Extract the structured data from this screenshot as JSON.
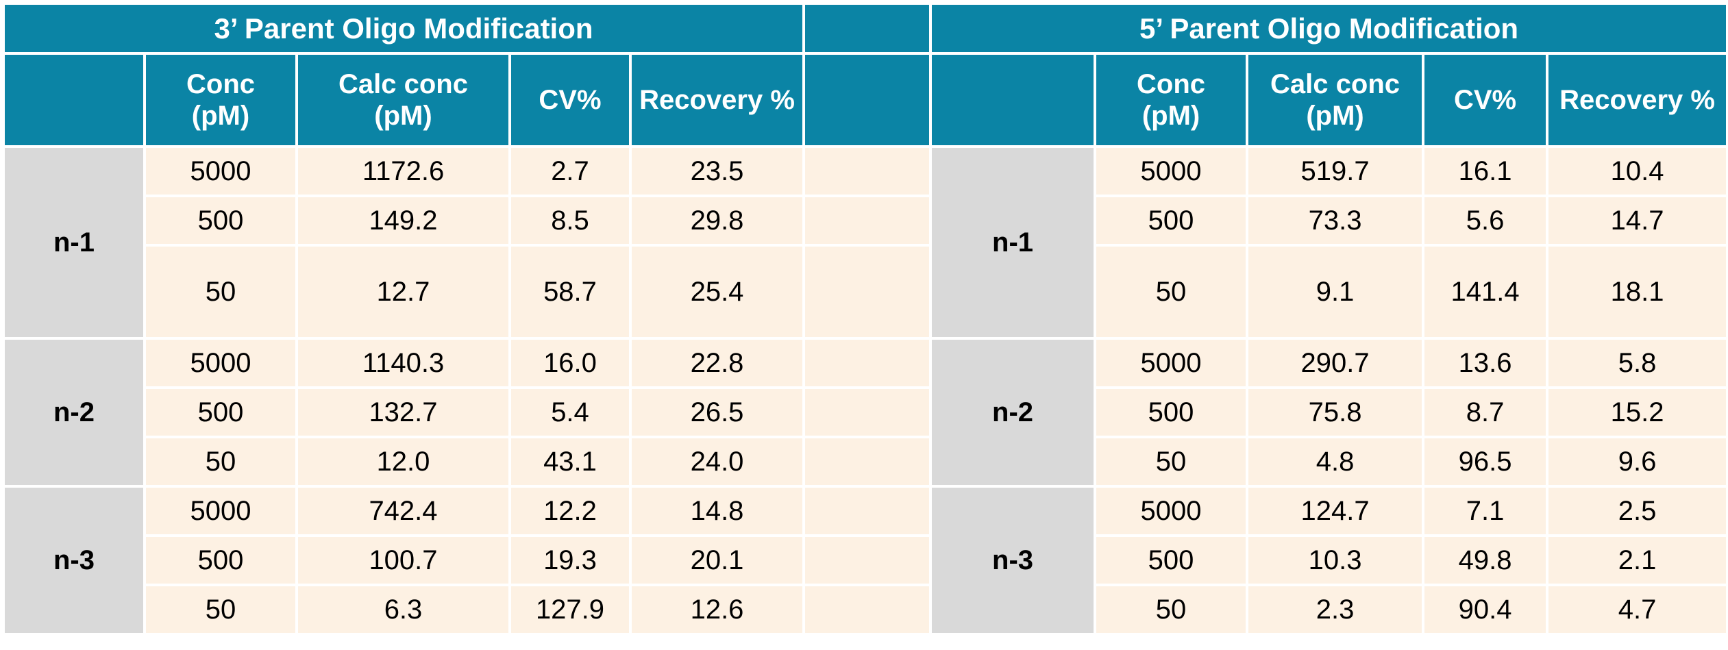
{
  "colors": {
    "header_bg": "#0b84a5",
    "label_bg": "#d9d9d9",
    "cell_bg": "#fdf1e3"
  },
  "left": {
    "title": "3’ Parent Oligo Modification",
    "headers": {
      "conc": "Conc\n(pM)",
      "calc": "Calc conc\n(pM)",
      "cv": "CV%",
      "recovery": "Recovery %"
    },
    "groups": [
      {
        "label": "n-1",
        "rows": [
          {
            "conc": "5000",
            "calc": "1172.6",
            "cv": "2.7",
            "rec": "23.5"
          },
          {
            "conc": "500",
            "calc": "149.2",
            "cv": "8.5",
            "rec": "29.8"
          },
          {
            "conc": "50",
            "calc": "12.7",
            "cv": "58.7",
            "rec": "25.4"
          }
        ]
      },
      {
        "label": "n-2",
        "rows": [
          {
            "conc": "5000",
            "calc": "1140.3",
            "cv": "16.0",
            "rec": "22.8"
          },
          {
            "conc": "500",
            "calc": "132.7",
            "cv": "5.4",
            "rec": "26.5"
          },
          {
            "conc": "50",
            "calc": "12.0",
            "cv": "43.1",
            "rec": "24.0"
          }
        ]
      },
      {
        "label": "n-3",
        "rows": [
          {
            "conc": "5000",
            "calc": "742.4",
            "cv": "12.2",
            "rec": "14.8"
          },
          {
            "conc": "500",
            "calc": "100.7",
            "cv": "19.3",
            "rec": "20.1"
          },
          {
            "conc": "50",
            "calc": "6.3",
            "cv": "127.9",
            "rec": "12.6"
          }
        ]
      }
    ]
  },
  "right": {
    "title": "5’ Parent Oligo Modification",
    "headers": {
      "conc": "Conc\n(pM)",
      "calc": "Calc conc\n(pM)",
      "cv": "CV%",
      "recovery": "Recovery %"
    },
    "groups": [
      {
        "label": "n-1",
        "rows": [
          {
            "conc": "5000",
            "calc": "519.7",
            "cv": "16.1",
            "rec": "10.4"
          },
          {
            "conc": "500",
            "calc": "73.3",
            "cv": "5.6",
            "rec": "14.7"
          },
          {
            "conc": "50",
            "calc": "9.1",
            "cv": "141.4",
            "rec": "18.1"
          }
        ]
      },
      {
        "label": "n-2",
        "rows": [
          {
            "conc": "5000",
            "calc": "290.7",
            "cv": "13.6",
            "rec": "5.8"
          },
          {
            "conc": "500",
            "calc": "75.8",
            "cv": "8.7",
            "rec": "15.2"
          },
          {
            "conc": "50",
            "calc": "4.8",
            "cv": "96.5",
            "rec": "9.6"
          }
        ]
      },
      {
        "label": "n-3",
        "rows": [
          {
            "conc": "5000",
            "calc": "124.7",
            "cv": "7.1",
            "rec": "2.5"
          },
          {
            "conc": "500",
            "calc": "10.3",
            "cv": "49.8",
            "rec": "2.1"
          },
          {
            "conc": "50",
            "calc": "2.3",
            "cv": "90.4",
            "rec": "4.7"
          }
        ]
      }
    ]
  }
}
